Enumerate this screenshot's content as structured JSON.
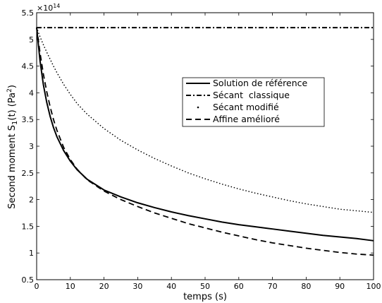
{
  "chart_data": {
    "type": "line",
    "title": "",
    "xlabel": "temps (s)",
    "ylabel": "Second moment S1(t)  (Pa²)",
    "ylabel_parts": {
      "pre": "Second moment S",
      "sub": "1",
      "mid": "(t)  (Pa",
      "sup": "2",
      "post": ")"
    },
    "y_multiplier": "×10",
    "y_multiplier_exp": "14",
    "xlim": [
      0,
      100
    ],
    "ylim": [
      0.5,
      5.5
    ],
    "xticks": [
      "0",
      "10",
      "20",
      "30",
      "40",
      "50",
      "60",
      "70",
      "80",
      "90",
      "100"
    ],
    "yticks": [
      "0.5",
      "1",
      "1.5",
      "2",
      "2.5",
      "3",
      "3.5",
      "4",
      "4.5",
      "5",
      "5.5"
    ],
    "grid": false,
    "legend_position": "right-middle",
    "x": [
      0,
      1,
      2,
      3,
      4,
      5,
      6,
      8,
      10,
      12,
      15,
      20,
      25,
      30,
      35,
      40,
      45,
      50,
      55,
      60,
      65,
      70,
      75,
      80,
      85,
      90,
      95,
      100
    ],
    "series": [
      {
        "name": "Solution de référence",
        "style": "solid",
        "color": "#000000",
        "values": [
          5.22,
          4.6,
          4.15,
          3.82,
          3.56,
          3.35,
          3.18,
          2.92,
          2.72,
          2.56,
          2.38,
          2.18,
          2.05,
          1.94,
          1.85,
          1.77,
          1.7,
          1.64,
          1.58,
          1.53,
          1.49,
          1.45,
          1.41,
          1.37,
          1.33,
          1.3,
          1.27,
          1.23
        ]
      },
      {
        "name": "Sécant  classique",
        "style": "dashdot",
        "color": "#000000",
        "values": [
          5.22,
          5.22,
          5.22,
          5.22,
          5.22,
          5.22,
          5.22,
          5.22,
          5.22,
          5.22,
          5.22,
          5.22,
          5.22,
          5.22,
          5.22,
          5.22,
          5.22,
          5.22,
          5.22,
          5.22,
          5.22,
          5.22,
          5.22,
          5.22,
          5.22,
          5.22,
          5.22,
          5.22
        ]
      },
      {
        "name": "Sécant modifié",
        "style": "dotted",
        "color": "#000000",
        "values": [
          5.22,
          5.05,
          4.9,
          4.76,
          4.63,
          4.5,
          4.38,
          4.16,
          3.97,
          3.8,
          3.6,
          3.33,
          3.11,
          2.93,
          2.77,
          2.63,
          2.5,
          2.39,
          2.29,
          2.2,
          2.12,
          2.05,
          1.98,
          1.92,
          1.87,
          1.82,
          1.79,
          1.76
        ]
      },
      {
        "name": "Affine amélioré",
        "style": "dashed",
        "color": "#000000",
        "values": [
          5.22,
          4.75,
          4.35,
          4.02,
          3.74,
          3.5,
          3.3,
          2.98,
          2.75,
          2.57,
          2.37,
          2.16,
          2.0,
          1.87,
          1.75,
          1.65,
          1.55,
          1.47,
          1.39,
          1.32,
          1.25,
          1.19,
          1.14,
          1.09,
          1.05,
          1.01,
          0.98,
          0.96
        ]
      }
    ]
  }
}
